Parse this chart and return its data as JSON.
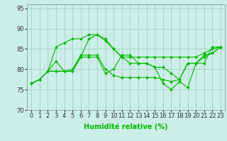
{
  "background_color": "#cceee8",
  "grid_color": "#99ccbb",
  "line_color": "#00bb00",
  "xlabel": "Humidité relative (%)",
  "xlabel_fontsize": 7,
  "tick_fontsize": 6,
  "ylim": [
    70,
    96
  ],
  "xlim": [
    -0.5,
    23.5
  ],
  "yticks": [
    70,
    75,
    80,
    85,
    90,
    95
  ],
  "xticks": [
    0,
    1,
    2,
    3,
    4,
    5,
    6,
    7,
    8,
    9,
    10,
    11,
    12,
    13,
    14,
    15,
    16,
    17,
    18,
    19,
    20,
    21,
    22,
    23
  ],
  "series": [
    [
      76.5,
      77.5,
      79.5,
      85.5,
      86.5,
      87.5,
      87.5,
      88.5,
      88.5,
      87.0,
      85.0,
      83.0,
      83.0,
      83.0,
      83.0,
      83.0,
      83.0,
      83.0,
      83.0,
      83.0,
      83.0,
      84.0,
      85.0,
      85.5
    ],
    [
      76.5,
      77.5,
      79.5,
      82.0,
      79.5,
      79.5,
      83.0,
      87.5,
      88.5,
      87.5,
      85.0,
      83.0,
      81.5,
      81.5,
      81.5,
      80.5,
      80.5,
      79.0,
      77.5,
      81.5,
      81.5,
      83.0,
      84.0,
      85.5
    ],
    [
      76.5,
      77.5,
      79.5,
      79.5,
      79.5,
      80.0,
      83.5,
      83.5,
      83.5,
      80.0,
      78.5,
      78.0,
      78.0,
      78.0,
      78.0,
      78.0,
      77.5,
      77.0,
      77.5,
      81.5,
      81.5,
      81.5,
      85.5,
      85.5
    ],
    [
      76.5,
      77.5,
      79.5,
      79.5,
      79.5,
      79.5,
      83.0,
      83.0,
      83.0,
      79.0,
      80.0,
      83.5,
      83.5,
      81.5,
      81.5,
      80.5,
      76.5,
      75.0,
      77.0,
      75.5,
      81.5,
      83.5,
      84.0,
      85.5
    ]
  ]
}
